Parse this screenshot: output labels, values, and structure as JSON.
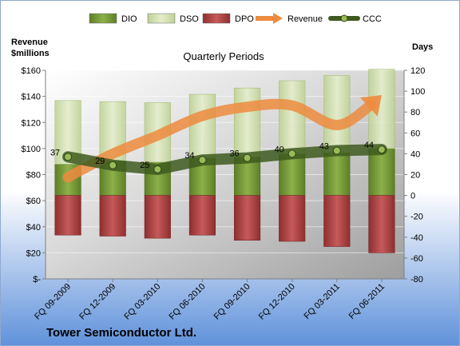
{
  "chart_data": {
    "type": "combo",
    "subtitle": "Quarterly Periods",
    "company": "Tower Semiconductor Ltd.",
    "left_axis": {
      "label_line1": "Revenue",
      "label_line2": "$millions",
      "min": 0,
      "max": 160,
      "step": 20,
      "tick_labels": [
        "$-",
        "$20",
        "$40",
        "$60",
        "$80",
        "$100",
        "$120",
        "$140",
        "$160"
      ]
    },
    "right_axis": {
      "label": "Days",
      "min": -80,
      "max": 120,
      "step": 20
    },
    "categories": [
      "FQ 09-2009",
      "FQ 12-2009",
      "FQ 03-2010",
      "FQ 06-2010",
      "FQ 09-2010",
      "FQ 12-2010",
      "FQ 03-2011",
      "FQ 06-2011"
    ],
    "legend": [
      {
        "key": "dio",
        "label": "DIO",
        "kind": "bar"
      },
      {
        "key": "dso",
        "label": "DSO",
        "kind": "bar"
      },
      {
        "key": "dpo",
        "label": "DPO",
        "kind": "bar"
      },
      {
        "key": "revenue",
        "label": "Revenue",
        "kind": "arrow"
      },
      {
        "key": "ccc",
        "label": "CCC",
        "kind": "line"
      }
    ],
    "series": {
      "dio": [
        30,
        33,
        32,
        36,
        37,
        40,
        41,
        45
      ],
      "dso": [
        61,
        57,
        57,
        61,
        66,
        70,
        74,
        76
      ],
      "dpo": [
        -38,
        -39,
        -41,
        -38,
        -43,
        -44,
        -49,
        -55
      ],
      "ccc": [
        37,
        29,
        25,
        34,
        36,
        40,
        43,
        44
      ],
      "revenue_trend": [
        78,
        96,
        110,
        125,
        132,
        133,
        118,
        141
      ]
    },
    "colors": {
      "dio": "#7FA03A",
      "dso": "#D7E4B3",
      "dpo": "#B64848",
      "revenue": "#ED8B3E",
      "ccc": "#4E6B2A",
      "ccc_marker": "#9BBB59",
      "plot_bg": "#C8C8C8",
      "page_bg_top": "#FFFFFF",
      "page_bg_bottom": "#5F91DA"
    },
    "grid": true,
    "legend_position": "top"
  }
}
